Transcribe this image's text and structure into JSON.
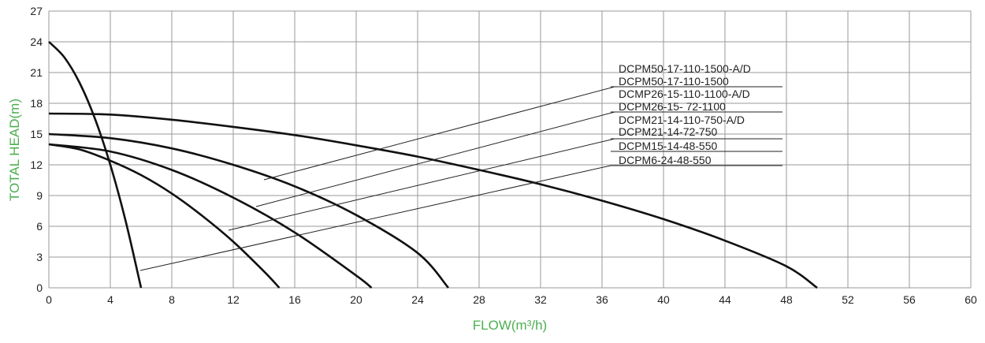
{
  "chart_data": {
    "type": "line",
    "xlabel": "FLOW(m³/h)",
    "ylabel": "TOTAL HEAD(m)",
    "xlim": [
      0,
      60
    ],
    "xticks": [
      0,
      4,
      8,
      12,
      16,
      20,
      24,
      28,
      32,
      36,
      40,
      44,
      48,
      52,
      56,
      60
    ],
    "ylim": [
      0,
      27
    ],
    "yticks": [
      0,
      3,
      6,
      9,
      12,
      15,
      18,
      21,
      24,
      27
    ],
    "grid": true,
    "color": "#111111",
    "series": [
      {
        "x": [
          0,
          4,
          8,
          12,
          16,
          20,
          24,
          28,
          32,
          36,
          40,
          44,
          48,
          50
        ],
        "values": [
          17,
          16.9,
          16.4,
          15.7,
          14.9,
          13.9,
          12.8,
          11.5,
          10.1,
          8.5,
          6.7,
          4.6,
          2.1,
          0
        ]
      },
      {
        "x": [
          0,
          4,
          8,
          12,
          16,
          20,
          24,
          26
        ],
        "values": [
          15,
          14.6,
          13.6,
          12,
          9.9,
          7.1,
          3.4,
          0
        ]
      },
      {
        "x": [
          0,
          4,
          8,
          12,
          16,
          20,
          21
        ],
        "values": [
          14,
          13.3,
          11.5,
          8.8,
          5.4,
          1.2,
          0
        ]
      },
      {
        "x": [
          0,
          2,
          4,
          6,
          8,
          10,
          12,
          14,
          15
        ],
        "values": [
          14,
          13.5,
          12.4,
          11,
          9.2,
          7,
          4.5,
          1.6,
          0
        ]
      },
      {
        "x": [
          0,
          1,
          2,
          3,
          4,
          5,
          6
        ],
        "values": [
          24,
          22.5,
          20,
          16.5,
          12,
          6.5,
          0
        ]
      }
    ],
    "annotations": [
      "DCPM50-17-110-1500-A/D",
      "DCPM50-17-110-1500",
      "DCMP26-15-110-1100-A/D",
      "DCPM26-15- 72-1100",
      "DCPM21-14-110-750-A/D",
      "DCPM21-14-72-750",
      "DCPM15-14-48-550",
      "DCPM6-24-48-550"
    ]
  }
}
